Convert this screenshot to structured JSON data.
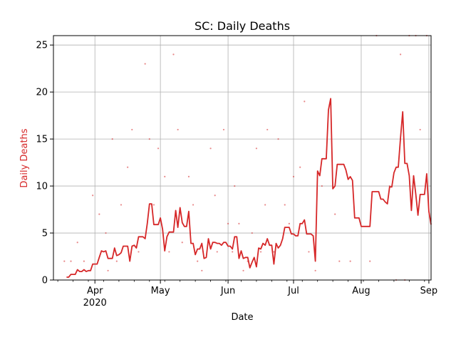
{
  "chart_data": {
    "type": "line",
    "title": "SC: Daily Deaths",
    "xlabel": "Date",
    "ylabel": "Daily Deaths",
    "colors": {
      "series": "#d62728",
      "grid": "#b0b0b0",
      "axis": "#000000"
    },
    "grid": true,
    "xlim": [
      "2020-03-13",
      "2020-09-02"
    ],
    "ylim": [
      0,
      26
    ],
    "x_ticks": [
      {
        "date": "2020-04-01",
        "label": "Apr",
        "sublabel": "2020"
      },
      {
        "date": "2020-05-01",
        "label": "May",
        "sublabel": ""
      },
      {
        "date": "2020-06-01",
        "label": "Jun",
        "sublabel": ""
      },
      {
        "date": "2020-07-01",
        "label": "Jul",
        "sublabel": ""
      },
      {
        "date": "2020-08-01",
        "label": "Aug",
        "sublabel": ""
      },
      {
        "date": "2020-09-01",
        "label": "Sep",
        "sublabel": ""
      }
    ],
    "y_ticks": [
      0,
      5,
      10,
      15,
      20,
      25
    ],
    "series": [
      {
        "kind": "scatter",
        "x": [
          "2020-03-18",
          "2020-03-21",
          "2020-03-24",
          "2020-03-27",
          "2020-03-31",
          "2020-04-03",
          "2020-04-06",
          "2020-04-07",
          "2020-04-09",
          "2020-04-11",
          "2020-04-13",
          "2020-04-16",
          "2020-04-18",
          "2020-04-21",
          "2020-04-24",
          "2020-04-26",
          "2020-04-28",
          "2020-04-30",
          "2020-05-03",
          "2020-05-05",
          "2020-05-07",
          "2020-05-09",
          "2020-05-11",
          "2020-05-14",
          "2020-05-16",
          "2020-05-18",
          "2020-05-20",
          "2020-05-24",
          "2020-05-26",
          "2020-05-27",
          "2020-05-30",
          "2020-06-01",
          "2020-06-03",
          "2020-06-04",
          "2020-06-06",
          "2020-06-08",
          "2020-06-10",
          "2020-06-12",
          "2020-06-14",
          "2020-06-16",
          "2020-06-18",
          "2020-06-19",
          "2020-06-22",
          "2020-06-24",
          "2020-06-27",
          "2020-06-29",
          "2020-07-01",
          "2020-07-04",
          "2020-07-06",
          "2020-07-08",
          "2020-07-11",
          "2020-07-14",
          "2020-07-16",
          "2020-07-20",
          "2020-07-22",
          "2020-07-27",
          "2020-08-05",
          "2020-08-08",
          "2020-08-14",
          "2020-08-17",
          "2020-08-19",
          "2020-08-21",
          "2020-08-23",
          "2020-08-25",
          "2020-08-26",
          "2020-08-28",
          "2020-08-31"
        ],
        "y": [
          2,
          2,
          4,
          2,
          9,
          7,
          5,
          1,
          15,
          2,
          8,
          12,
          16,
          3,
          23,
          15,
          8,
          14,
          11,
          3,
          24,
          16,
          4,
          11,
          8,
          2,
          1,
          14,
          9,
          3,
          16,
          6,
          3,
          10,
          6,
          1,
          2,
          5,
          14,
          3,
          8,
          16,
          3,
          15,
          8,
          6,
          11,
          12,
          19,
          3,
          1,
          10,
          13,
          7,
          2,
          2,
          2,
          26,
          10,
          0,
          24,
          0,
          26,
          11,
          26,
          16,
          26
        ]
      },
      {
        "kind": "line",
        "x": [
          "2020-03-19",
          "2020-03-20",
          "2020-03-21",
          "2020-03-22",
          "2020-03-23",
          "2020-03-24",
          "2020-03-25",
          "2020-03-26",
          "2020-03-27",
          "2020-03-28",
          "2020-03-29",
          "2020-03-30",
          "2020-03-31",
          "2020-04-01",
          "2020-04-02",
          "2020-04-03",
          "2020-04-04",
          "2020-04-05",
          "2020-04-06",
          "2020-04-07",
          "2020-04-08",
          "2020-04-09",
          "2020-04-10",
          "2020-04-11",
          "2020-04-12",
          "2020-04-13",
          "2020-04-14",
          "2020-04-15",
          "2020-04-16",
          "2020-04-17",
          "2020-04-18",
          "2020-04-19",
          "2020-04-20",
          "2020-04-21",
          "2020-04-22",
          "2020-04-23",
          "2020-04-24",
          "2020-04-25",
          "2020-04-26",
          "2020-04-27",
          "2020-04-28",
          "2020-04-29",
          "2020-04-30",
          "2020-05-01",
          "2020-05-02",
          "2020-05-03",
          "2020-05-04",
          "2020-05-05",
          "2020-05-06",
          "2020-05-07",
          "2020-05-08",
          "2020-05-09",
          "2020-05-10",
          "2020-05-11",
          "2020-05-12",
          "2020-05-13",
          "2020-05-14",
          "2020-05-15",
          "2020-05-16",
          "2020-05-17",
          "2020-05-18",
          "2020-05-19",
          "2020-05-20",
          "2020-05-21",
          "2020-05-22",
          "2020-05-23",
          "2020-05-24",
          "2020-05-25",
          "2020-05-26",
          "2020-05-27",
          "2020-05-28",
          "2020-05-29",
          "2020-05-30",
          "2020-05-31",
          "2020-06-01",
          "2020-06-02",
          "2020-06-03",
          "2020-06-04",
          "2020-06-05",
          "2020-06-06",
          "2020-06-07",
          "2020-06-08",
          "2020-06-09",
          "2020-06-10",
          "2020-06-11",
          "2020-06-12",
          "2020-06-13",
          "2020-06-14",
          "2020-06-15",
          "2020-06-16",
          "2020-06-17",
          "2020-06-18",
          "2020-06-19",
          "2020-06-20",
          "2020-06-21",
          "2020-06-22",
          "2020-06-23",
          "2020-06-24",
          "2020-06-25",
          "2020-06-26",
          "2020-06-27",
          "2020-06-28",
          "2020-06-29",
          "2020-06-30",
          "2020-07-01",
          "2020-07-02",
          "2020-07-03",
          "2020-07-04",
          "2020-07-05",
          "2020-07-06",
          "2020-07-07",
          "2020-07-08",
          "2020-07-09",
          "2020-07-10",
          "2020-07-11",
          "2020-07-12",
          "2020-07-13",
          "2020-07-14",
          "2020-07-15",
          "2020-07-16",
          "2020-07-17",
          "2020-07-18",
          "2020-07-19",
          "2020-07-20",
          "2020-07-21",
          "2020-07-22",
          "2020-07-23",
          "2020-07-24",
          "2020-07-25",
          "2020-07-26",
          "2020-07-27",
          "2020-07-28",
          "2020-07-29",
          "2020-07-30",
          "2020-07-31",
          "2020-08-01",
          "2020-08-02",
          "2020-08-03",
          "2020-08-04",
          "2020-08-05",
          "2020-08-06",
          "2020-08-07",
          "2020-08-08",
          "2020-08-09",
          "2020-08-10",
          "2020-08-11",
          "2020-08-12",
          "2020-08-13",
          "2020-08-14",
          "2020-08-15",
          "2020-08-16",
          "2020-08-17",
          "2020-08-18",
          "2020-08-19",
          "2020-08-20",
          "2020-08-21",
          "2020-08-22",
          "2020-08-23",
          "2020-08-24",
          "2020-08-25",
          "2020-08-26",
          "2020-08-27",
          "2020-08-28",
          "2020-08-29",
          "2020-08-30",
          "2020-08-31",
          "2020-09-01",
          "2020-09-02"
        ],
        "y": [
          0.3,
          0.3,
          0.6,
          0.6,
          0.6,
          1.1,
          0.9,
          0.9,
          1.1,
          0.9,
          1.0,
          1.0,
          1.7,
          1.7,
          1.7,
          2.4,
          3.1,
          3.0,
          3.1,
          2.3,
          2.3,
          2.3,
          3.4,
          2.6,
          2.7,
          2.9,
          3.6,
          3.6,
          3.6,
          2.0,
          3.6,
          3.7,
          3.4,
          4.6,
          4.6,
          4.6,
          4.4,
          6.0,
          8.1,
          8.1,
          5.9,
          5.9,
          5.9,
          6.6,
          5.4,
          3.1,
          4.6,
          5.1,
          5.1,
          5.1,
          7.4,
          5.6,
          7.7,
          6.1,
          5.7,
          5.7,
          7.3,
          3.9,
          3.9,
          2.7,
          3.3,
          3.3,
          3.9,
          2.3,
          2.4,
          4.4,
          3.3,
          4.0,
          4.0,
          3.9,
          3.9,
          3.7,
          4.0,
          4.0,
          3.6,
          3.6,
          3.3,
          4.6,
          4.6,
          2.3,
          3.1,
          2.3,
          2.4,
          2.4,
          1.3,
          1.9,
          2.4,
          1.4,
          3.4,
          3.3,
          3.9,
          3.7,
          4.4,
          3.7,
          3.7,
          1.7,
          3.9,
          3.4,
          3.7,
          4.4,
          5.6,
          5.6,
          5.6,
          4.9,
          4.9,
          4.7,
          4.7,
          6.0,
          6.0,
          6.4,
          4.9,
          4.9,
          4.9,
          4.7,
          2.0,
          11.6,
          11.1,
          12.9,
          12.9,
          12.9,
          18.1,
          19.3,
          9.7,
          10.0,
          12.3,
          12.3,
          12.3,
          12.3,
          11.7,
          10.7,
          11.0,
          10.6,
          6.6,
          6.6,
          6.6,
          5.7,
          5.7,
          5.7,
          5.7,
          5.7,
          9.4,
          9.4,
          9.4,
          9.4,
          8.6,
          8.6,
          8.3,
          8.1,
          9.9,
          9.9,
          11.4,
          12.0,
          12.0,
          15.1,
          17.9,
          12.4,
          12.4,
          11.1,
          7.4,
          11.1,
          9.1,
          6.9,
          9.1,
          9.1,
          9.1,
          11.3,
          7.3,
          5.9
        ]
      }
    ]
  }
}
